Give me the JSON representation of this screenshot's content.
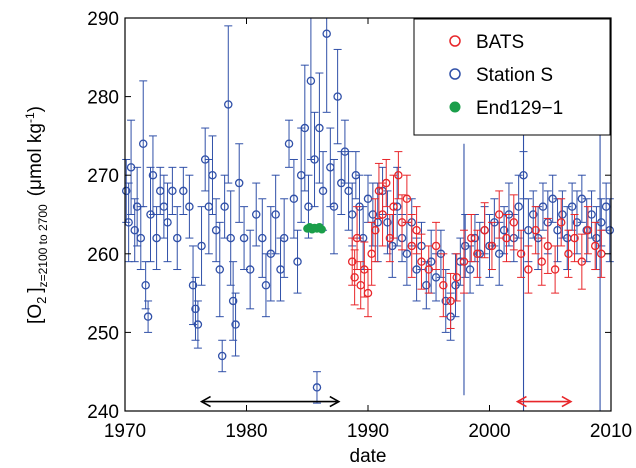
{
  "chart_data": {
    "type": "scatter",
    "xlabel": "date",
    "ylabel": {
      "main": "[O",
      "sub1": "2",
      "bracket": "]",
      "sub2": "z=2100 to 2700",
      "units_pre": "(μmol kg",
      "units_sup": "-1",
      "units_post": ")"
    },
    "xlim": [
      1970,
      2010
    ],
    "ylim": [
      240,
      290
    ],
    "xticks": [
      "1970",
      "1980",
      "1990",
      "2000",
      "2010"
    ],
    "yticks": [
      "240",
      "250",
      "260",
      "270",
      "280",
      "290"
    ],
    "grid": false,
    "legend_position": "top-right",
    "series": [
      {
        "name": "BATS",
        "color": "#e8262a",
        "marker": "open-circle",
        "points": [
          [
            1988.7,
            259,
            3
          ],
          [
            1988.9,
            257,
            3.5
          ],
          [
            1989.1,
            262,
            4
          ],
          [
            1989.4,
            256,
            3
          ],
          [
            1989.7,
            258,
            3.5
          ],
          [
            1990.0,
            255,
            3
          ],
          [
            1990.3,
            260,
            4
          ],
          [
            1990.6,
            263,
            4
          ],
          [
            1990.9,
            268,
            3.5
          ],
          [
            1991.2,
            265,
            4
          ],
          [
            1991.5,
            269,
            3
          ],
          [
            1991.8,
            262,
            3
          ],
          [
            1992.1,
            266,
            4
          ],
          [
            1992.5,
            270,
            3
          ],
          [
            1992.8,
            264,
            3.5
          ],
          [
            1993.2,
            267,
            3
          ],
          [
            1993.6,
            261,
            4
          ],
          [
            1994.0,
            263,
            3
          ],
          [
            1994.4,
            259,
            3.5
          ],
          [
            1995.0,
            258,
            3
          ],
          [
            1995.6,
            261,
            3
          ],
          [
            1996.2,
            256,
            4
          ],
          [
            1996.8,
            254,
            3.5
          ],
          [
            1997.3,
            257,
            3
          ],
          [
            1997.9,
            259,
            4
          ],
          [
            1998.5,
            262,
            3
          ],
          [
            1999.0,
            260,
            3
          ],
          [
            1999.6,
            263,
            3.5
          ],
          [
            2000.2,
            261,
            3
          ],
          [
            2000.8,
            265,
            3
          ],
          [
            2001.4,
            262,
            3
          ],
          [
            2002.0,
            264,
            3.5
          ],
          [
            2002.6,
            260,
            3
          ],
          [
            2003.2,
            258,
            3
          ],
          [
            2003.8,
            263,
            3
          ],
          [
            2004.3,
            259,
            3
          ],
          [
            2004.8,
            261,
            3.5
          ],
          [
            2005.4,
            258,
            3
          ],
          [
            2005.9,
            264,
            3
          ],
          [
            2006.5,
            260,
            3
          ],
          [
            2007.0,
            262,
            3
          ],
          [
            2007.6,
            259,
            3.5
          ],
          [
            2008.1,
            263,
            3
          ],
          [
            2008.7,
            261,
            3
          ],
          [
            2009.2,
            260,
            3
          ]
        ]
      },
      {
        "name": "Station S",
        "color": "#3050a8",
        "marker": "open-circle",
        "points": [
          [
            1970.1,
            268,
            4
          ],
          [
            1970.3,
            264,
            5
          ],
          [
            1970.5,
            271,
            6
          ],
          [
            1970.8,
            263,
            4
          ],
          [
            1971.0,
            266,
            5
          ],
          [
            1971.3,
            262,
            4
          ],
          [
            1971.5,
            274,
            8
          ],
          [
            1971.7,
            256,
            3
          ],
          [
            1971.9,
            252,
            2
          ],
          [
            1972.1,
            265,
            6
          ],
          [
            1972.3,
            270,
            5
          ],
          [
            1972.6,
            262,
            4
          ],
          [
            1972.9,
            268,
            3
          ],
          [
            1973.2,
            266,
            4
          ],
          [
            1973.5,
            264,
            5
          ],
          [
            1973.9,
            268,
            3
          ],
          [
            1974.3,
            262,
            4
          ],
          [
            1974.8,
            268,
            3
          ],
          [
            1975.3,
            266,
            4
          ],
          [
            1975.6,
            256,
            5
          ],
          [
            1975.8,
            253,
            4
          ],
          [
            1976.0,
            251,
            3
          ],
          [
            1976.3,
            261,
            5
          ],
          [
            1976.6,
            272,
            4
          ],
          [
            1976.9,
            266,
            6
          ],
          [
            1977.2,
            270,
            5
          ],
          [
            1977.5,
            263,
            4
          ],
          [
            1977.8,
            258,
            6
          ],
          [
            1978.0,
            247,
            2
          ],
          [
            1978.2,
            266,
            4
          ],
          [
            1978.5,
            279,
            10
          ],
          [
            1978.7,
            262,
            6
          ],
          [
            1978.9,
            254,
            5
          ],
          [
            1979.1,
            251,
            4
          ],
          [
            1979.4,
            269,
            5
          ],
          [
            1979.8,
            262,
            4
          ],
          [
            1980.3,
            258,
            5
          ],
          [
            1980.8,
            265,
            4
          ],
          [
            1981.3,
            262,
            5
          ],
          [
            1981.6,
            256,
            4
          ],
          [
            1982.0,
            260,
            6
          ],
          [
            1982.4,
            265,
            5
          ],
          [
            1982.8,
            258,
            4
          ],
          [
            1983.1,
            262,
            5
          ],
          [
            1983.5,
            274,
            3
          ],
          [
            1983.9,
            267,
            5
          ],
          [
            1984.2,
            259,
            4
          ],
          [
            1984.5,
            270,
            6
          ],
          [
            1984.8,
            276,
            8
          ],
          [
            1985.1,
            266,
            4
          ],
          [
            1985.3,
            282,
            10
          ],
          [
            1985.6,
            272,
            6
          ],
          [
            1985.8,
            243,
            2
          ],
          [
            1986.0,
            276,
            7
          ],
          [
            1986.3,
            268,
            5
          ],
          [
            1986.6,
            288,
            10
          ],
          [
            1986.9,
            271,
            5
          ],
          [
            1987.2,
            266,
            6
          ],
          [
            1987.5,
            280,
            6
          ],
          [
            1987.8,
            269,
            4
          ],
          [
            1988.1,
            273,
            4
          ],
          [
            1988.4,
            268,
            5
          ],
          [
            1988.7,
            265,
            4
          ],
          [
            1989.0,
            270,
            3
          ],
          [
            1989.3,
            266,
            4
          ],
          [
            1989.6,
            262,
            4
          ],
          [
            1990.0,
            267,
            3
          ],
          [
            1990.4,
            265,
            4
          ],
          [
            1990.8,
            264,
            5
          ],
          [
            1991.2,
            268,
            3
          ],
          [
            1991.6,
            264,
            4
          ],
          [
            1992.0,
            261,
            4
          ],
          [
            1992.4,
            266,
            5
          ],
          [
            1992.8,
            262,
            3
          ],
          [
            1993.2,
            260,
            4
          ],
          [
            1993.6,
            264,
            3
          ],
          [
            1994.0,
            258,
            4
          ],
          [
            1994.4,
            261,
            3
          ],
          [
            1994.8,
            256,
            3
          ],
          [
            1995.2,
            259,
            4
          ],
          [
            1995.6,
            257,
            3
          ],
          [
            1996.0,
            260,
            3
          ],
          [
            1996.4,
            254,
            4
          ],
          [
            1996.8,
            252,
            3
          ],
          [
            1997.2,
            256,
            4
          ],
          [
            1997.6,
            259,
            3
          ],
          [
            1998.0,
            261,
            4
          ],
          [
            1998.4,
            258,
            3
          ],
          [
            1998.8,
            262,
            3
          ],
          [
            1999.2,
            260,
            4
          ],
          [
            1999.6,
            263,
            3
          ],
          [
            2000.0,
            261,
            4
          ],
          [
            2000.4,
            264,
            3
          ],
          [
            2000.8,
            260,
            4
          ],
          [
            2001.2,
            263,
            3
          ],
          [
            2001.6,
            265,
            4
          ],
          [
            2002.0,
            262,
            3
          ],
          [
            2002.4,
            266,
            4
          ],
          [
            2002.8,
            270,
            3
          ],
          [
            2003.2,
            263,
            4
          ],
          [
            2003.6,
            265,
            3
          ],
          [
            2004.0,
            262,
            4
          ],
          [
            2004.4,
            266,
            3
          ],
          [
            2004.8,
            264,
            4
          ],
          [
            2005.2,
            267,
            3
          ],
          [
            2005.6,
            263,
            4
          ],
          [
            2006.0,
            265,
            3
          ],
          [
            2006.4,
            262,
            4
          ],
          [
            2006.8,
            266,
            3
          ],
          [
            2007.2,
            264,
            4
          ],
          [
            2007.6,
            267,
            3
          ],
          [
            2008.0,
            263,
            4
          ],
          [
            2008.4,
            265,
            3
          ],
          [
            2008.8,
            262,
            4
          ],
          [
            2009.2,
            264,
            3
          ],
          [
            2009.6,
            266,
            3
          ],
          [
            2009.9,
            263,
            4
          ]
        ]
      },
      {
        "name": "End129−1",
        "color": "#1a9e4a",
        "marker": "filled-circle",
        "points": [
          [
            1985.0,
            263.2,
            0
          ],
          [
            1985.2,
            263.4,
            0
          ],
          [
            1985.4,
            263.1,
            0
          ],
          [
            1985.6,
            263.3,
            0
          ],
          [
            1985.8,
            263.2,
            0
          ],
          [
            1986.0,
            263.4,
            0
          ],
          [
            1986.2,
            263.1,
            0
          ]
        ]
      }
    ],
    "tall_errorbars": [
      {
        "x": 1997.9,
        "y": 255,
        "err_low": 13,
        "err_high": 19,
        "color": "#3050a8"
      },
      {
        "x": 2002.8,
        "y": 265,
        "err_low": 30,
        "err_high": 12,
        "color": "#3050a8"
      },
      {
        "x": 2009.1,
        "y": 262,
        "err_low": 24,
        "err_high": 18,
        "color": "#3050a8"
      }
    ],
    "annotations": [
      {
        "type": "double-arrow",
        "x_start": 1976.3,
        "x_end": 1987.6,
        "y": 241.2,
        "color": "#000000"
      },
      {
        "type": "double-arrow",
        "x_start": 2002.3,
        "x_end": 2006.7,
        "y": 241.2,
        "color": "#e8262a"
      }
    ]
  }
}
